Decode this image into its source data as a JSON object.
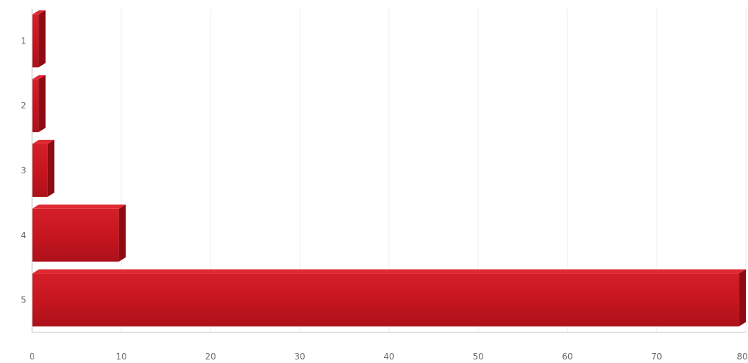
{
  "chart_data": {
    "type": "bar",
    "orientation": "horizontal",
    "categories": [
      "1",
      "2",
      "3",
      "4",
      "5"
    ],
    "series": [
      {
        "values": [
          1.5,
          1.5,
          2.5,
          10.5,
          80
        ]
      }
    ],
    "xlim": [
      0,
      80
    ],
    "x_ticks": [
      "0",
      "10",
      "20",
      "30",
      "40",
      "50",
      "60",
      "70",
      "80"
    ],
    "title": "",
    "xlabel": "",
    "ylabel": "",
    "grid": true,
    "bar_color": "#c7161f",
    "bar_shadow_color": "#8e0b12",
    "bar_highlight_color": "#e02a33"
  }
}
